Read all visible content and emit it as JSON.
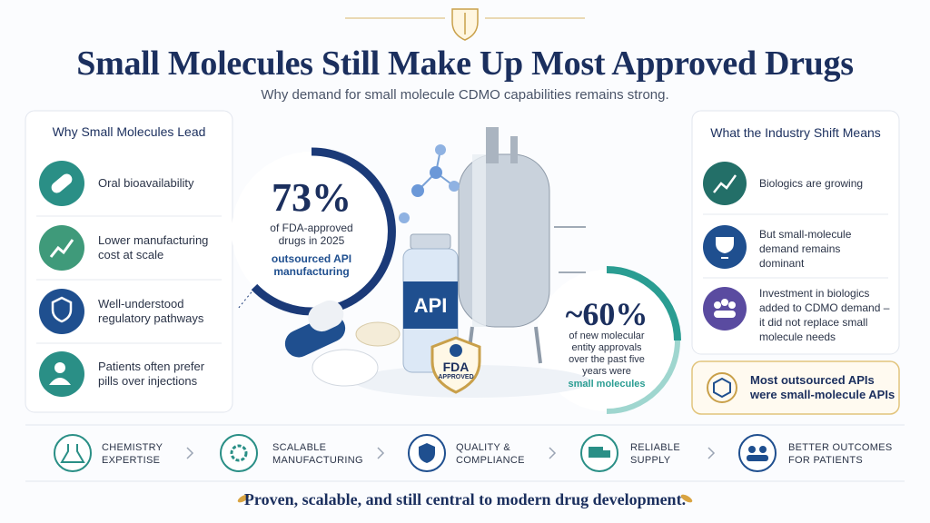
{
  "header": {
    "title": "Small Molecules Still Make Up Most Approved Drugs",
    "subtitle": "Why demand for small molecule CDMO capabilities remains strong."
  },
  "left_panel": {
    "title": "Why Small Molecules Lead",
    "items": [
      "Oral bioavailability",
      "Lower manufacturing cost at scale",
      "Well-understood regulatory pathways",
      "Patients often prefer pills over injections"
    ]
  },
  "center": {
    "stat_main": {
      "value": "73%",
      "text": "of FDA-approved drugs in 2025",
      "highlight": "outsourced API manufacturing"
    },
    "stat_secondary": {
      "value": "~60%",
      "text": "of new molecular entity approvals over the past five years were",
      "highlight": "small molecules"
    },
    "vial_label": "API",
    "badge": {
      "title": "FDA",
      "subtitle": "APPROVED"
    }
  },
  "right_panel": {
    "title": "What the Industry Shift Means",
    "items": [
      "Biologics are growing",
      "But small-molecule demand remains dominant",
      "Investment in biologics added to CDMO demand – it did not replace small molecule needs"
    ],
    "callout": "Most outsourced APIs were small-molecule APIs"
  },
  "steps": [
    "CHEMISTRY EXPERTISE",
    "SCALABLE MANUFACTURING",
    "QUALITY & COMPLIANCE",
    "RELIABLE SUPPLY",
    "BETTER OUTCOMES FOR PATIENTS"
  ],
  "footer": {
    "tagline": "Proven, scalable, and still central to modern drug development."
  }
}
